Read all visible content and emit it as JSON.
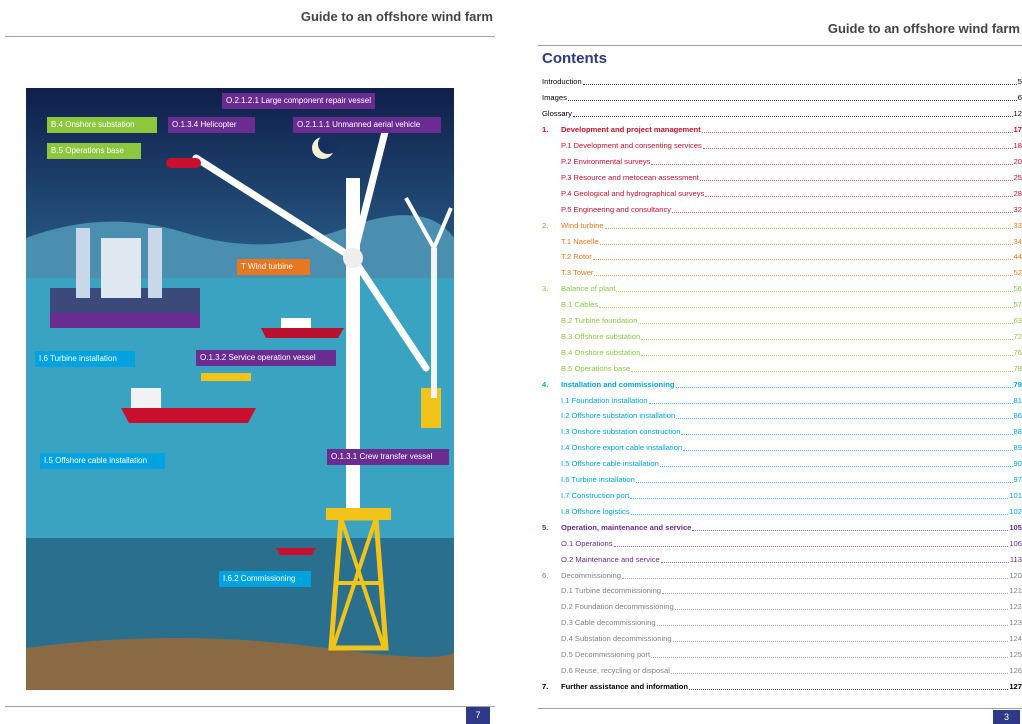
{
  "left_page": {
    "header": "Guide to an offshore wind farm",
    "page_number": 7,
    "labels": [
      "O.2.1.2.1 Large component repair vessel",
      "B.4 Onshore substation",
      "O.1.3.4 Helicopter",
      "O.2.1.1.1 Unmanned aerial vehicle",
      "B.5 Operations base",
      "T Wind turbine",
      "I.6 Turbine installation",
      "O.1.3.2 Service operation vessel",
      "I.5 Offshore cable installation",
      "O.1.3.1 Crew transfer vessel",
      "I.6.2 Commissioning"
    ]
  },
  "right_page": {
    "header": "Guide to an offshore wind farm",
    "page_number": 3,
    "toc": {
      "title": "Contents",
      "front": [
        {
          "title": "Introduction",
          "page": 5
        },
        {
          "title": "Images",
          "page": 6
        },
        {
          "title": "Glossary",
          "page": 12
        }
      ],
      "sections": [
        {
          "number": "1.",
          "title": "Development and project management",
          "page": 17,
          "items": [
            {
              "title": "P.1 Development and consenting services",
              "page": 18
            },
            {
              "title": "P.2 Environmental surveys",
              "page": 20
            },
            {
              "title": "P.3 Resource and metocean assessment",
              "page": 25
            },
            {
              "title": "P.4 Geological and hydrographical surveys",
              "page": 28
            },
            {
              "title": "P.5 Engineering and consultancy",
              "page": 32
            }
          ]
        },
        {
          "number": "2.",
          "title": "Wind turbine",
          "page": 33,
          "items": [
            {
              "title": "T.1 Nacelle",
              "page": 34
            },
            {
              "title": "T.2 Rotor",
              "page": 44
            },
            {
              "title": "T.3 Tower",
              "page": 52
            }
          ]
        },
        {
          "number": "3.",
          "title": "Balance of plant",
          "page": 56,
          "items": [
            {
              "title": "B.1 Cables",
              "page": 57
            },
            {
              "title": "B.2 Turbine foundation",
              "page": 63
            },
            {
              "title": "B.3 Offshore substation",
              "page": 72
            },
            {
              "title": "B.4 Onshore substation",
              "page": 76
            },
            {
              "title": "B.5 Operations base",
              "page": 78
            }
          ]
        },
        {
          "number": "4.",
          "title": "Installation and commissioning",
          "page": 79,
          "items": [
            {
              "title": "I.1 Foundation installation",
              "page": 81
            },
            {
              "title": "I.2 Offshore substation installation",
              "page": 86
            },
            {
              "title": "I.3 Onshore substation construction",
              "page": 88
            },
            {
              "title": "I.4 Onshore export cable installation",
              "page": 89
            },
            {
              "title": "I.5 Offshore cable installation",
              "page": 90
            },
            {
              "title": "I.6 Turbine installation",
              "page": 97
            },
            {
              "title": "I.7 Construction port",
              "page": 101
            },
            {
              "title": "I.8 Offshore logistics",
              "page": 102
            }
          ]
        },
        {
          "number": "5.",
          "title": "Operation, maintenance and service",
          "page": 105,
          "items": [
            {
              "title": "O.1 Operations",
              "page": 106
            },
            {
              "title": "O.2 Maintenance and service",
              "page": 113
            }
          ]
        },
        {
          "number": "6.",
          "title": "Decommissioning",
          "page": 120,
          "items": [
            {
              "title": "D.1 Turbine decommissioning",
              "page": 121
            },
            {
              "title": "D.2 Foundation decommissioning",
              "page": 122
            },
            {
              "title": "D.3 Cable decommissioning",
              "page": 123
            },
            {
              "title": "D.4 Substation decommissioning",
              "page": 124
            },
            {
              "title": "D.5 Decommissioning port",
              "page": 125
            },
            {
              "title": "D.6 Reuse, recycling or disposal",
              "page": 126
            }
          ]
        },
        {
          "number": "7.",
          "title": "Further assistance and information",
          "page": 127,
          "items": []
        }
      ]
    }
  }
}
